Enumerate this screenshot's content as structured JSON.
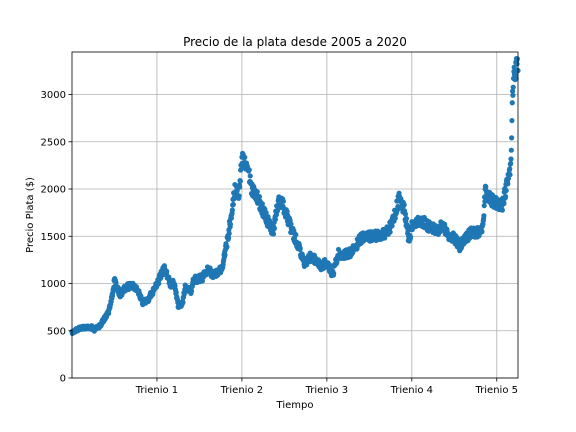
{
  "chart_data": {
    "type": "scatter",
    "title": "Precio de la plata desde 2005 a 2020",
    "xlabel": "Tiempo",
    "ylabel": "Precio Plata ($)",
    "x_tick_labels": [
      "Trienio 1",
      "Trienio 2",
      "Trienio 3",
      "Trienio 4",
      "Trienio 5"
    ],
    "x_tick_positions": [
      3,
      6,
      9,
      12,
      15
    ],
    "xlim": [
      0,
      15.75
    ],
    "y_ticks": [
      0,
      500,
      1000,
      1500,
      2000,
      2500,
      3000
    ],
    "ylim": [
      0,
      3450
    ],
    "grid": true,
    "marker_color": "#1f77b4",
    "series": [
      {
        "anchors": [
          [
            0.0,
            480
          ],
          [
            0.3,
            530
          ],
          [
            0.7,
            535
          ],
          [
            0.8,
            510
          ],
          [
            1.0,
            560
          ],
          [
            1.3,
            700
          ],
          [
            1.4,
            840
          ],
          [
            1.5,
            1030
          ],
          [
            1.7,
            880
          ],
          [
            1.9,
            960
          ],
          [
            2.1,
            980
          ],
          [
            2.3,
            950
          ],
          [
            2.5,
            790
          ],
          [
            2.7,
            840
          ],
          [
            3.0,
            990
          ],
          [
            3.25,
            1160
          ],
          [
            3.5,
            980
          ],
          [
            3.6,
            1010
          ],
          [
            3.75,
            760
          ],
          [
            3.9,
            790
          ],
          [
            4.0,
            960
          ],
          [
            4.2,
            920
          ],
          [
            4.3,
            1040
          ],
          [
            4.6,
            1060
          ],
          [
            4.8,
            1150
          ],
          [
            5.0,
            1090
          ],
          [
            5.3,
            1160
          ],
          [
            5.5,
            1480
          ],
          [
            5.75,
            2000
          ],
          [
            5.9,
            1950
          ],
          [
            6.0,
            2300
          ],
          [
            6.2,
            2280
          ],
          [
            6.35,
            2000
          ],
          [
            6.5,
            1950
          ],
          [
            6.7,
            1800
          ],
          [
            7.0,
            1600
          ],
          [
            7.1,
            1550
          ],
          [
            7.3,
            1900
          ],
          [
            7.5,
            1800
          ],
          [
            7.75,
            1570
          ],
          [
            8.0,
            1400
          ],
          [
            8.2,
            1200
          ],
          [
            8.4,
            1280
          ],
          [
            8.6,
            1250
          ],
          [
            8.8,
            1180
          ],
          [
            9.0,
            1230
          ],
          [
            9.2,
            1090
          ],
          [
            9.4,
            1320
          ],
          [
            9.6,
            1300
          ],
          [
            9.9,
            1340
          ],
          [
            10.2,
            1480
          ],
          [
            10.6,
            1500
          ],
          [
            11.0,
            1520
          ],
          [
            11.3,
            1620
          ],
          [
            11.55,
            1900
          ],
          [
            11.75,
            1760
          ],
          [
            11.9,
            1450
          ],
          [
            12.0,
            1600
          ],
          [
            12.3,
            1680
          ],
          [
            12.6,
            1600
          ],
          [
            12.9,
            1560
          ],
          [
            13.1,
            1620
          ],
          [
            13.3,
            1500
          ],
          [
            13.5,
            1480
          ],
          [
            13.7,
            1390
          ],
          [
            13.9,
            1480
          ],
          [
            14.1,
            1540
          ],
          [
            14.4,
            1540
          ],
          [
            14.5,
            1570
          ],
          [
            14.6,
            2010
          ],
          [
            14.75,
            1900
          ],
          [
            15.0,
            1850
          ],
          [
            15.2,
            1840
          ],
          [
            15.4,
            2100
          ],
          [
            15.5,
            2250
          ],
          [
            15.55,
            2900
          ],
          [
            15.6,
            3250
          ],
          [
            15.75,
            3300
          ]
        ]
      }
    ]
  }
}
